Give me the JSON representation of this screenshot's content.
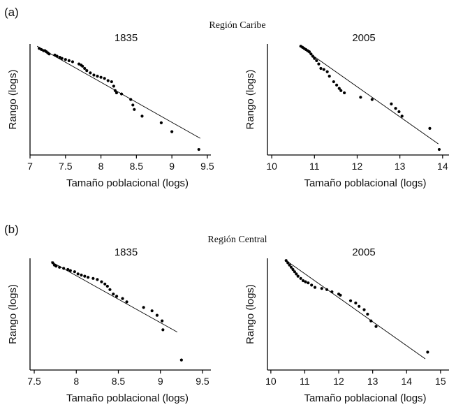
{
  "panels": [
    {
      "label": "(a)",
      "region_title": "Región Caribe"
    },
    {
      "label": "(b)",
      "region_title": "Región Central"
    }
  ],
  "chart_data": [
    {
      "type": "scatter",
      "panel": "(a)",
      "region": "Región Caribe",
      "title": "1835",
      "xlabel": "Tamaño poblacional (logs)",
      "ylabel": "Rango (logs)",
      "xlim": [
        7.0,
        9.55
      ],
      "ylim": [
        0,
        1
      ],
      "xticks": [
        7,
        7.5,
        8,
        8.5,
        9,
        9.5
      ],
      "xtick_labels": [
        "7",
        "7.5",
        "8",
        "8.5",
        "9",
        "9.5"
      ],
      "grid": false,
      "series": [
        {
          "points": [
            [
              7.13,
              0.96
            ],
            [
              7.16,
              0.95
            ],
            [
              7.19,
              0.94
            ],
            [
              7.21,
              0.94
            ],
            [
              7.23,
              0.93
            ],
            [
              7.25,
              0.92
            ],
            [
              7.27,
              0.91
            ],
            [
              7.35,
              0.9
            ],
            [
              7.38,
              0.89
            ],
            [
              7.42,
              0.88
            ],
            [
              7.45,
              0.87
            ],
            [
              7.5,
              0.86
            ],
            [
              7.55,
              0.85
            ],
            [
              7.6,
              0.84
            ],
            [
              7.69,
              0.82
            ],
            [
              7.72,
              0.81
            ],
            [
              7.74,
              0.8
            ],
            [
              7.77,
              0.78
            ],
            [
              7.8,
              0.76
            ],
            [
              7.85,
              0.74
            ],
            [
              7.9,
              0.72
            ],
            [
              7.95,
              0.71
            ],
            [
              8.0,
              0.7
            ],
            [
              8.05,
              0.69
            ],
            [
              8.1,
              0.67
            ],
            [
              8.15,
              0.66
            ],
            [
              8.18,
              0.62
            ],
            [
              8.2,
              0.58
            ],
            [
              8.22,
              0.56
            ],
            [
              8.29,
              0.55
            ],
            [
              8.42,
              0.5
            ],
            [
              8.45,
              0.45
            ],
            [
              8.47,
              0.41
            ],
            [
              8.58,
              0.35
            ],
            [
              8.85,
              0.29
            ],
            [
              9.0,
              0.21
            ],
            [
              9.38,
              0.05
            ]
          ]
        }
      ],
      "fit": {
        "x": [
          7.1,
          9.4
        ],
        "y": [
          0.98,
          0.15
        ]
      }
    },
    {
      "type": "scatter",
      "panel": "(a)",
      "region": "Región Caribe",
      "title": "2005",
      "xlabel": "Tamaño poblacional (logs)",
      "ylabel": "Rango (logs)",
      "xlim": [
        9.9,
        14.15
      ],
      "ylim": [
        0,
        1
      ],
      "xticks": [
        10,
        11,
        12,
        13,
        14
      ],
      "xtick_labels": [
        "10",
        "11",
        "12",
        "13",
        "14"
      ],
      "grid": false,
      "series": [
        {
          "points": [
            [
              10.68,
              0.98
            ],
            [
              10.72,
              0.97
            ],
            [
              10.76,
              0.96
            ],
            [
              10.8,
              0.95
            ],
            [
              10.84,
              0.94
            ],
            [
              10.88,
              0.93
            ],
            [
              10.92,
              0.91
            ],
            [
              10.96,
              0.89
            ],
            [
              11.0,
              0.87
            ],
            [
              11.05,
              0.85
            ],
            [
              11.1,
              0.82
            ],
            [
              11.15,
              0.78
            ],
            [
              11.22,
              0.77
            ],
            [
              11.3,
              0.75
            ],
            [
              11.35,
              0.71
            ],
            [
              11.45,
              0.66
            ],
            [
              11.52,
              0.63
            ],
            [
              11.58,
              0.6
            ],
            [
              11.62,
              0.58
            ],
            [
              11.7,
              0.56
            ],
            [
              12.08,
              0.52
            ],
            [
              12.35,
              0.5
            ],
            [
              12.8,
              0.46
            ],
            [
              12.9,
              0.42
            ],
            [
              12.98,
              0.39
            ],
            [
              13.05,
              0.35
            ],
            [
              13.7,
              0.24
            ],
            [
              13.92,
              0.05
            ]
          ]
        }
      ],
      "fit": {
        "x": [
          10.65,
          13.9
        ],
        "y": [
          0.98,
          0.1
        ]
      }
    },
    {
      "type": "scatter",
      "panel": "(b)",
      "region": "Región Central",
      "title": "1835",
      "xlabel": "Tamaño poblacional (logs)",
      "ylabel": "Rango (logs)",
      "xlim": [
        7.45,
        9.6
      ],
      "ylim": [
        0,
        1
      ],
      "xticks": [
        7.5,
        8,
        8.5,
        9,
        9.5
      ],
      "xtick_labels": [
        "7.5",
        "8",
        "8.5",
        "9",
        "9.5"
      ],
      "grid": false,
      "series": [
        {
          "points": [
            [
              7.72,
              0.96
            ],
            [
              7.74,
              0.94
            ],
            [
              7.76,
              0.93
            ],
            [
              7.8,
              0.92
            ],
            [
              7.85,
              0.91
            ],
            [
              7.9,
              0.9
            ],
            [
              7.93,
              0.89
            ],
            [
              7.98,
              0.88
            ],
            [
              8.02,
              0.86
            ],
            [
              8.06,
              0.85
            ],
            [
              8.1,
              0.84
            ],
            [
              8.14,
              0.83
            ],
            [
              8.2,
              0.82
            ],
            [
              8.25,
              0.81
            ],
            [
              8.3,
              0.79
            ],
            [
              8.34,
              0.77
            ],
            [
              8.37,
              0.75
            ],
            [
              8.4,
              0.72
            ],
            [
              8.44,
              0.68
            ],
            [
              8.48,
              0.66
            ],
            [
              8.55,
              0.64
            ],
            [
              8.6,
              0.61
            ],
            [
              8.8,
              0.56
            ],
            [
              8.9,
              0.53
            ],
            [
              8.96,
              0.49
            ],
            [
              9.02,
              0.44
            ],
            [
              9.03,
              0.36
            ],
            [
              9.25,
              0.09
            ]
          ]
        }
      ],
      "fit": {
        "x": [
          7.7,
          9.2
        ],
        "y": [
          0.97,
          0.34
        ]
      }
    },
    {
      "type": "scatter",
      "panel": "(b)",
      "region": "Región Central",
      "title": "2005",
      "xlabel": "Tamaño poblacional (logs)",
      "ylabel": "Rango (logs)",
      "xlim": [
        9.9,
        15.25
      ],
      "ylim": [
        0,
        1
      ],
      "xticks": [
        10,
        11,
        12,
        13,
        14,
        15
      ],
      "xtick_labels": [
        "10",
        "11",
        "12",
        "13",
        "14",
        "15"
      ],
      "grid": false,
      "series": [
        {
          "points": [
            [
              10.45,
              0.98
            ],
            [
              10.5,
              0.96
            ],
            [
              10.55,
              0.94
            ],
            [
              10.6,
              0.92
            ],
            [
              10.65,
              0.9
            ],
            [
              10.7,
              0.88
            ],
            [
              10.75,
              0.86
            ],
            [
              10.8,
              0.84
            ],
            [
              10.88,
              0.82
            ],
            [
              10.95,
              0.8
            ],
            [
              11.02,
              0.79
            ],
            [
              11.1,
              0.78
            ],
            [
              11.2,
              0.76
            ],
            [
              11.3,
              0.74
            ],
            [
              11.5,
              0.73
            ],
            [
              11.65,
              0.72
            ],
            [
              11.8,
              0.7
            ],
            [
              12.0,
              0.68
            ],
            [
              12.05,
              0.67
            ],
            [
              12.35,
              0.62
            ],
            [
              12.5,
              0.6
            ],
            [
              12.6,
              0.57
            ],
            [
              12.75,
              0.54
            ],
            [
              12.85,
              0.5
            ],
            [
              12.95,
              0.44
            ],
            [
              13.1,
              0.39
            ],
            [
              14.62,
              0.16
            ]
          ]
        }
      ],
      "fit": {
        "x": [
          10.45,
          14.55
        ],
        "y": [
          0.98,
          0.1
        ]
      }
    }
  ]
}
